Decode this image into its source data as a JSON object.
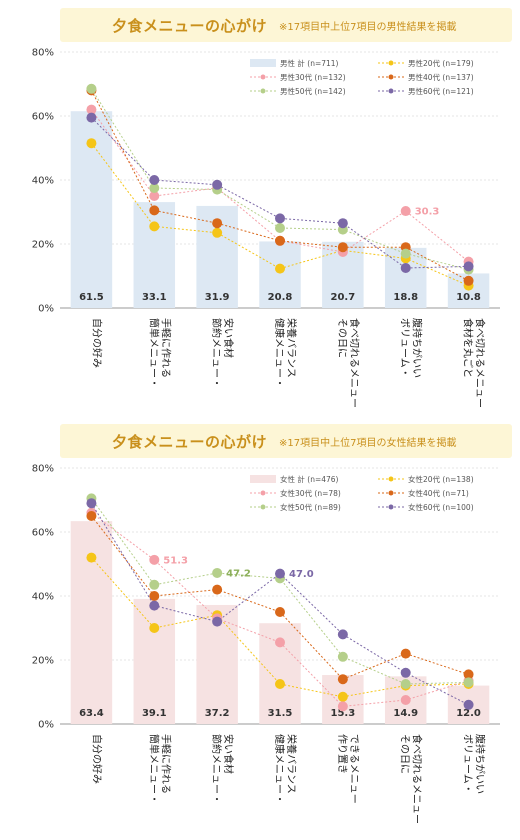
{
  "charts": [
    {
      "title": "夕食メニューの心がけ",
      "subtitle": "※17項目中上位7項目の男性結果を掲載",
      "chart_data": {
        "type": "bar",
        "ylim": [
          0,
          80
        ],
        "yticks": [
          "0%",
          "20%",
          "40%",
          "60%",
          "80%"
        ],
        "categories": [
          [
            "自分の好み"
          ],
          [
            "簡単メニュー・",
            "手軽に作れる"
          ],
          [
            "節約メニュー・",
            "安い食材"
          ],
          [
            "健康メニュー・",
            "栄養バランス"
          ],
          [
            "その日に",
            "食べ切れるメニュー"
          ],
          [
            "ボリューム・",
            "腹持ちがいい"
          ],
          [
            "食材を丸ごと",
            "食べ切れるメニュー"
          ]
        ],
        "bar": {
          "name": "男性 計 (n=711)",
          "values": [
            61.5,
            33.1,
            31.9,
            20.8,
            20.7,
            18.8,
            10.8
          ],
          "value_labels": [
            "61.5",
            "33.1",
            "31.9",
            "20.8",
            "20.7",
            "18.8",
            "10.8"
          ],
          "color": "#dde8f3"
        },
        "series": [
          {
            "name": "男性20代 (n=179)",
            "color": "#f5c518",
            "values": [
              51.5,
              25.5,
              23.5,
              12.3,
              18.0,
              15.5,
              7.0
            ]
          },
          {
            "name": "男性30代 (n=132)",
            "color": "#f4a0a8",
            "values": [
              62.0,
              35.0,
              37.5,
              21.0,
              17.5,
              30.3,
              14.5
            ]
          },
          {
            "name": "男性40代 (n=137)",
            "color": "#d9681a",
            "values": [
              68.0,
              30.5,
              26.5,
              21.0,
              19.0,
              19.0,
              8.5
            ]
          },
          {
            "name": "男性50代 (n=142)",
            "color": "#b5cf8a",
            "values": [
              68.5,
              37.5,
              37.0,
              25.0,
              24.5,
              17.0,
              12.0
            ]
          },
          {
            "name": "男性60代 (n=121)",
            "color": "#7b68a6",
            "values": [
              59.5,
              40.0,
              38.5,
              28.0,
              26.5,
              12.5,
              13.0
            ]
          }
        ],
        "callouts": [
          {
            "text": "30.3",
            "cat": 5,
            "value": 30.3,
            "color": "#f4a0a8"
          }
        ],
        "legend_position": "top-right"
      }
    },
    {
      "title": "夕食メニューの心がけ",
      "subtitle": "※17項目中上位7項目の女性結果を掲載",
      "chart_data": {
        "type": "bar",
        "ylim": [
          0,
          80
        ],
        "yticks": [
          "0%",
          "20%",
          "40%",
          "60%",
          "80%"
        ],
        "categories": [
          [
            "自分の好み"
          ],
          [
            "簡単メニュー・",
            "手軽に作れる"
          ],
          [
            "節約メニュー・",
            "安い食材"
          ],
          [
            "健康メニュー・",
            "栄養バランス"
          ],
          [
            "作り置き",
            "できるメニュー"
          ],
          [
            "その日に",
            "食べ切れるメニュー"
          ],
          [
            "ボリューム・",
            "腹持ちがいい"
          ]
        ],
        "bar": {
          "name": "女性 計 (n=476)",
          "values": [
            63.4,
            39.1,
            37.2,
            31.5,
            15.3,
            14.9,
            12.0
          ],
          "value_labels": [
            "63.4",
            "39.1",
            "37.2",
            "31.5",
            "15.3",
            "14.9",
            "12.0"
          ],
          "color": "#f6e2e2"
        },
        "series": [
          {
            "name": "女性20代 (n=138)",
            "color": "#f5c518",
            "values": [
              52.0,
              30.0,
              34.0,
              12.5,
              8.5,
              12.0,
              12.5
            ]
          },
          {
            "name": "女性30代 (n=78)",
            "color": "#f4a0a8",
            "values": [
              66.0,
              51.3,
              33.0,
              25.5,
              5.5,
              7.5,
              13.5
            ]
          },
          {
            "name": "女性40代 (n=71)",
            "color": "#d9681a",
            "values": [
              65.0,
              40.0,
              42.0,
              35.0,
              14.0,
              22.0,
              15.5
            ]
          },
          {
            "name": "女性50代 (n=89)",
            "color": "#b5cf8a",
            "values": [
              70.5,
              43.5,
              47.2,
              45.5,
              21.0,
              12.5,
              13.0
            ]
          },
          {
            "name": "女性60代 (n=100)",
            "color": "#7b68a6",
            "values": [
              69.0,
              37.0,
              32.0,
              47.0,
              28.0,
              16.0,
              6.0
            ]
          }
        ],
        "callouts": [
          {
            "text": "51.3",
            "cat": 1,
            "value": 51.3,
            "color": "#f4a0a8"
          },
          {
            "text": "47.2",
            "cat": 2,
            "value": 47.2,
            "color": "#8caf5a"
          },
          {
            "text": "47.0",
            "cat": 3,
            "value": 47.0,
            "color": "#7b68a6"
          }
        ],
        "legend_position": "top-right"
      }
    }
  ]
}
